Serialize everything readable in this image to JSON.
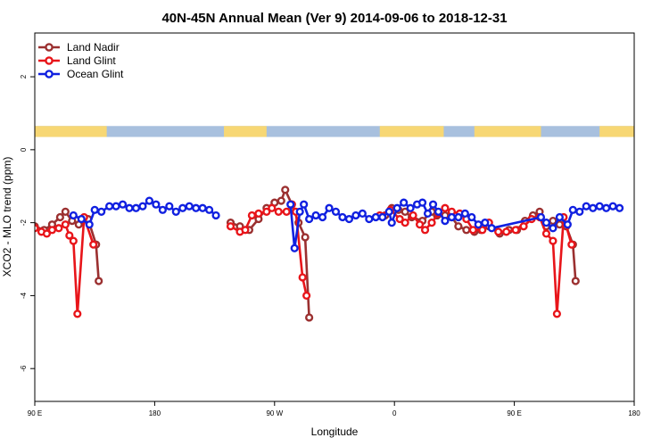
{
  "chart_data": {
    "type": "line",
    "title": "40N-45N Annual Mean (Ver 9)   2014-09-06 to 2018-12-31",
    "xlabel": "Longitude",
    "ylabel": "XCO2 - MLO trend (ppm)",
    "x_axis": {
      "ticks": [
        90,
        180,
        270,
        360,
        450,
        540
      ],
      "tick_labels": [
        "90 E",
        "180",
        "90 W",
        "0",
        "90 E",
        "180"
      ],
      "range": [
        90,
        540
      ]
    },
    "ylim": [
      -6.9,
      3.2
    ],
    "y_ticks": [
      2,
      0,
      -2,
      -4,
      -6
    ],
    "y_tick_labels": [
      "2",
      "0",
      "-2",
      "-4",
      "-6"
    ],
    "legend_position": "top-left",
    "land_mask_band": {
      "y_range": [
        0.35,
        0.65
      ],
      "land_color": "#f7d774",
      "ocean_color": "#a8c0de",
      "land_segments": [
        [
          90,
          144
        ],
        [
          232,
          264
        ],
        [
          349,
          397
        ],
        [
          420,
          470
        ],
        [
          514,
          547
        ]
      ]
    },
    "series": [
      {
        "name": "Land Nadir",
        "color": "#9b3030",
        "points": [
          [
            90,
            -2.1
          ],
          [
            97,
            -2.2
          ],
          [
            103,
            -2.05
          ],
          [
            109,
            -1.85
          ],
          [
            113,
            -1.7
          ],
          [
            118,
            -1.95
          ],
          [
            123,
            -2.05
          ],
          [
            130,
            -1.9
          ],
          [
            136,
            -2.6
          ],
          [
            138,
            -3.6
          ],
          [
            147,
            null
          ],
          [
            237,
            -2.0
          ],
          [
            244,
            -2.1
          ],
          [
            251,
            -2.2
          ],
          [
            258,
            -1.9
          ],
          [
            264,
            -1.6
          ],
          [
            270,
            -1.45
          ],
          [
            275,
            -1.4
          ],
          [
            278,
            -1.1
          ],
          [
            283,
            -1.5
          ],
          [
            288,
            -2.0
          ],
          [
            293,
            -2.4
          ],
          [
            296,
            -4.6
          ],
          [
            304,
            null
          ],
          [
            353,
            -1.8
          ],
          [
            358,
            -1.6
          ],
          [
            363,
            -1.65
          ],
          [
            368,
            -1.7
          ],
          [
            373,
            -1.85
          ],
          [
            381,
            -1.95
          ],
          [
            388,
            -1.7
          ],
          [
            392,
            -1.8
          ],
          [
            398,
            -1.8
          ],
          [
            403,
            -1.85
          ],
          [
            408,
            -2.1
          ],
          [
            414,
            -2.2
          ],
          [
            420,
            -2.25
          ],
          [
            425,
            -2.2
          ],
          [
            431,
            -2.1
          ],
          [
            439,
            -2.3
          ],
          [
            446,
            -2.2
          ],
          [
            452,
            -2.2
          ],
          [
            458,
            -1.95
          ],
          [
            464,
            -1.8
          ],
          [
            469,
            -1.7
          ],
          [
            474,
            -2.1
          ],
          [
            479,
            -1.95
          ],
          [
            484,
            -2.05
          ],
          [
            489,
            -2.1
          ],
          [
            494,
            -2.6
          ],
          [
            496,
            -3.6
          ]
        ]
      },
      {
        "name": "Land Glint",
        "color": "#e8151a",
        "points": [
          [
            90,
            -2.15
          ],
          [
            95,
            -2.25
          ],
          [
            99,
            -2.3
          ],
          [
            103,
            -2.2
          ],
          [
            108,
            -2.15
          ],
          [
            113,
            -2.05
          ],
          [
            116,
            -2.35
          ],
          [
            119,
            -2.5
          ],
          [
            122,
            -4.5
          ],
          [
            127,
            -1.85
          ],
          [
            134,
            -2.6
          ],
          [
            147,
            null
          ],
          [
            237,
            -2.1
          ],
          [
            244,
            -2.25
          ],
          [
            248,
            -2.2
          ],
          [
            253,
            -1.8
          ],
          [
            258,
            -1.75
          ],
          [
            264,
            -1.7
          ],
          [
            268,
            -1.6
          ],
          [
            273,
            -1.7
          ],
          [
            279,
            -1.7
          ],
          [
            283,
            -1.5
          ],
          [
            286,
            -1.7
          ],
          [
            291,
            -3.5
          ],
          [
            294,
            -4.0
          ],
          [
            304,
            null
          ],
          [
            349,
            -1.8
          ],
          [
            357,
            -1.65
          ],
          [
            364,
            -1.9
          ],
          [
            368,
            -2.0
          ],
          [
            374,
            -1.8
          ],
          [
            379,
            -2.05
          ],
          [
            383,
            -2.2
          ],
          [
            388,
            -2.0
          ],
          [
            393,
            -1.75
          ],
          [
            398,
            -1.6
          ],
          [
            403,
            -1.7
          ],
          [
            409,
            -1.75
          ],
          [
            414,
            -1.9
          ],
          [
            419,
            -2.2
          ],
          [
            426,
            -2.2
          ],
          [
            431,
            -2.0
          ],
          [
            438,
            -2.25
          ],
          [
            444,
            -2.25
          ],
          [
            451,
            -2.2
          ],
          [
            457,
            -2.1
          ],
          [
            463,
            -1.9
          ],
          [
            469,
            -1.85
          ],
          [
            474,
            -2.3
          ],
          [
            479,
            -2.5
          ],
          [
            482,
            -4.5
          ],
          [
            487,
            -1.85
          ],
          [
            493,
            -2.6
          ]
        ]
      },
      {
        "name": "Ocean Glint",
        "color": "#1020e0",
        "points": [
          [
            119,
            -1.8
          ],
          [
            125,
            -1.9
          ],
          [
            131,
            -2.05
          ],
          [
            135,
            -1.65
          ],
          [
            140,
            -1.7
          ],
          [
            146,
            -1.55
          ],
          [
            151,
            -1.55
          ],
          [
            156,
            -1.5
          ],
          [
            161,
            -1.6
          ],
          [
            166,
            -1.6
          ],
          [
            171,
            -1.55
          ],
          [
            176,
            -1.4
          ],
          [
            181,
            -1.5
          ],
          [
            186,
            -1.65
          ],
          [
            191,
            -1.55
          ],
          [
            196,
            -1.7
          ],
          [
            201,
            -1.6
          ],
          [
            206,
            -1.55
          ],
          [
            211,
            -1.6
          ],
          [
            216,
            -1.6
          ],
          [
            221,
            -1.65
          ],
          [
            226,
            -1.8
          ],
          [
            231,
            null
          ],
          [
            282,
            -1.5
          ],
          [
            285,
            -2.7
          ],
          [
            289,
            -1.7
          ],
          [
            292,
            -1.5
          ],
          [
            296,
            -1.9
          ],
          [
            301,
            -1.8
          ],
          [
            306,
            -1.85
          ],
          [
            311,
            -1.6
          ],
          [
            316,
            -1.7
          ],
          [
            321,
            -1.85
          ],
          [
            326,
            -1.9
          ],
          [
            331,
            -1.8
          ],
          [
            336,
            -1.75
          ],
          [
            341,
            -1.9
          ],
          [
            346,
            -1.85
          ],
          [
            351,
            -1.85
          ],
          [
            356,
            -1.7
          ],
          [
            358,
            -2.0
          ],
          [
            362,
            -1.6
          ],
          [
            367,
            -1.45
          ],
          [
            372,
            -1.6
          ],
          [
            377,
            -1.5
          ],
          [
            381,
            -1.45
          ],
          [
            385,
            -1.75
          ],
          [
            389,
            -1.5
          ],
          [
            393,
            -1.7
          ],
          [
            398,
            -1.95
          ],
          [
            403,
            -1.85
          ],
          [
            408,
            -1.85
          ],
          [
            413,
            -1.75
          ],
          [
            418,
            -1.85
          ],
          [
            423,
            -2.05
          ],
          [
            428,
            -2.0
          ],
          [
            433,
            -2.15
          ],
          [
            470,
            -1.85
          ],
          [
            474,
            -2.0
          ],
          [
            479,
            -2.15
          ],
          [
            484,
            -1.85
          ],
          [
            490,
            -2.05
          ],
          [
            494,
            -1.65
          ],
          [
            499,
            -1.7
          ],
          [
            504,
            -1.55
          ],
          [
            509,
            -1.6
          ],
          [
            514,
            -1.55
          ],
          [
            519,
            -1.6
          ],
          [
            524,
            -1.55
          ],
          [
            529,
            -1.6
          ]
        ]
      }
    ]
  }
}
